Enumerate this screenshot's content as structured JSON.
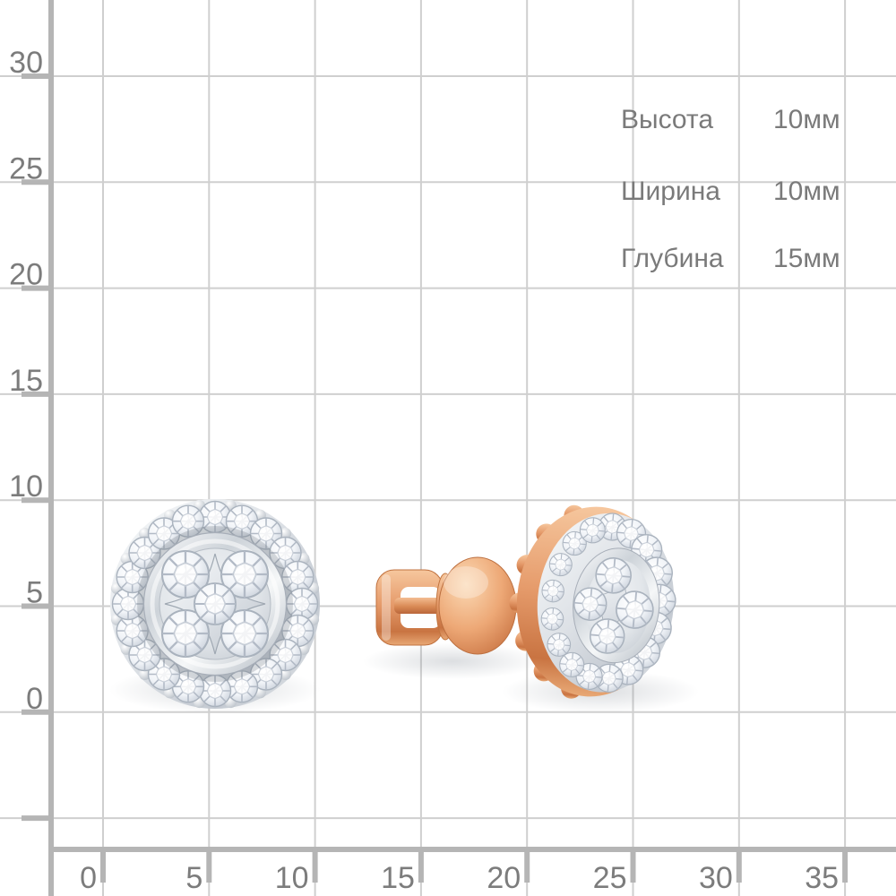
{
  "dimensions_panel": {
    "rows": [
      {
        "label": "Высота",
        "value": "10мм"
      },
      {
        "label": "Ширина",
        "value": "10мм"
      },
      {
        "label": "Глубина",
        "value": "15мм"
      }
    ]
  },
  "axes": {
    "x_ticks": [
      "0",
      "5",
      "10",
      "15",
      "20",
      "25",
      "30",
      "35"
    ],
    "y_ticks": [
      "30",
      "25",
      "20",
      "15",
      "10",
      "5",
      "0"
    ]
  },
  "colors": {
    "background": "#ffffff",
    "grid_line": "#cfcfcf",
    "ruler": "#b5b5b5",
    "label_text": "#7a7a7a",
    "rose_gold": "#e59d6e",
    "white_gold": "#dfe3e8",
    "diamond": "#f2f5f9"
  }
}
